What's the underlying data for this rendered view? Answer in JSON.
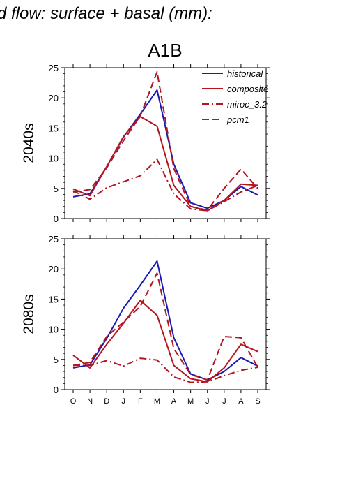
{
  "figure": {
    "title": "d flow: surface + basal (mm):",
    "scenario": "A1B"
  },
  "colors": {
    "historical": "#1a1ab4",
    "projection": "#b4141e"
  },
  "legend": {
    "placement": "top-right",
    "entries": [
      {
        "name": "historical",
        "style": "solid",
        "color": "#1a1ab4"
      },
      {
        "name": "composite",
        "style": "solid",
        "color": "#b4141e"
      },
      {
        "name": "miroc_3.2",
        "style": "dashdot",
        "color": "#b4141e"
      },
      {
        "name": "pcm1",
        "style": "dashed",
        "color": "#b4141e"
      }
    ]
  },
  "chart_data": [
    {
      "type": "line",
      "ylabel": "2040s",
      "categories": [
        "O",
        "N",
        "D",
        "J",
        "F",
        "M",
        "A",
        "M",
        "J",
        "J",
        "A",
        "S"
      ],
      "ylim": [
        0,
        25
      ],
      "yticks": [
        0,
        5,
        10,
        15,
        20,
        25
      ],
      "grid": false,
      "series": [
        {
          "name": "historical",
          "values": [
            3.6,
            4.1,
            8.6,
            13.5,
            17.3,
            21.3,
            9.0,
            2.6,
            1.7,
            3.0,
            5.3,
            3.9
          ]
        },
        {
          "name": "composite",
          "values": [
            4.9,
            3.8,
            8.6,
            13.6,
            16.9,
            15.3,
            5.5,
            2.0,
            1.3,
            3.0,
            5.7,
            5.5
          ]
        },
        {
          "name": "miroc_3.2",
          "values": [
            4.6,
            3.2,
            5.1,
            6.1,
            7.1,
            9.8,
            4.1,
            1.6,
            1.3,
            2.8,
            4.4,
            5.5
          ]
        },
        {
          "name": "pcm1",
          "values": [
            4.4,
            4.8,
            8.4,
            12.9,
            17.0,
            24.3,
            8.3,
            2.0,
            1.4,
            5.0,
            8.2,
            5.0
          ]
        }
      ]
    },
    {
      "type": "line",
      "ylabel": "2080s",
      "categories": [
        "O",
        "N",
        "D",
        "J",
        "F",
        "M",
        "A",
        "M",
        "J",
        "J",
        "A",
        "S"
      ],
      "ylim": [
        0,
        25
      ],
      "yticks": [
        0,
        5,
        10,
        15,
        20,
        25
      ],
      "grid": false,
      "series": [
        {
          "name": "historical",
          "values": [
            3.6,
            4.1,
            8.5,
            13.5,
            17.3,
            21.3,
            8.6,
            2.6,
            1.6,
            3.0,
            5.3,
            3.9
          ]
        },
        {
          "name": "composite",
          "values": [
            5.7,
            3.6,
            7.5,
            11.0,
            14.8,
            12.3,
            4.0,
            1.8,
            1.3,
            3.6,
            7.5,
            6.3
          ]
        },
        {
          "name": "miroc_3.2",
          "values": [
            4.0,
            4.0,
            4.8,
            3.9,
            5.2,
            4.9,
            2.1,
            1.2,
            1.3,
            2.3,
            3.2,
            3.7
          ]
        },
        {
          "name": "pcm1",
          "values": [
            4.0,
            4.5,
            8.8,
            11.2,
            13.8,
            19.3,
            6.8,
            2.5,
            1.6,
            8.8,
            8.6,
            3.7
          ]
        }
      ]
    }
  ]
}
